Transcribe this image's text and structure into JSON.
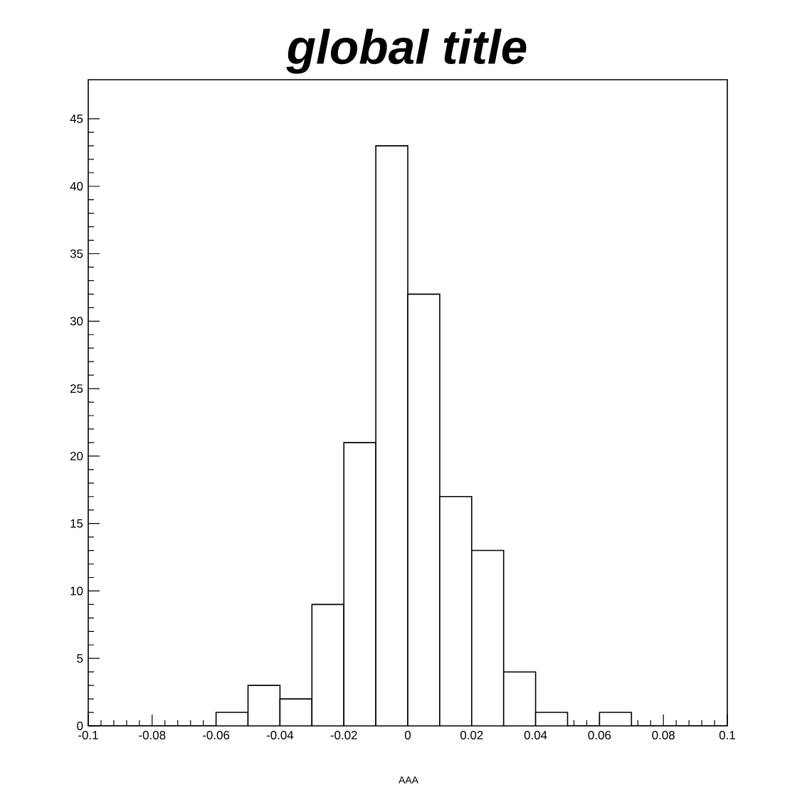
{
  "chart_data": {
    "type": "histogram",
    "title": "global title",
    "xlabel": "AAA",
    "bins": [
      -0.1,
      -0.09,
      -0.08,
      -0.07,
      -0.06,
      -0.05,
      -0.04,
      -0.03,
      -0.02,
      -0.01,
      0,
      0.01,
      0.02,
      0.03,
      0.04,
      0.05,
      0.06,
      0.07,
      0.08,
      0.09,
      0.1
    ],
    "values": [
      0,
      0,
      0,
      0,
      1,
      3,
      2,
      9,
      21,
      43,
      32,
      17,
      13,
      4,
      1,
      0,
      1,
      0,
      0,
      0
    ],
    "color": "#000000",
    "xlim": [
      -0.1,
      0.1
    ],
    "ylim": [
      0,
      47.9
    ],
    "xticks": [
      -0.1,
      -0.08,
      -0.06,
      -0.04,
      -0.02,
      0,
      0.02,
      0.04,
      0.06,
      0.08,
      0.1
    ],
    "yticks": [
      0,
      5,
      10,
      15,
      20,
      25,
      30,
      35,
      40,
      45
    ],
    "grid": false
  }
}
